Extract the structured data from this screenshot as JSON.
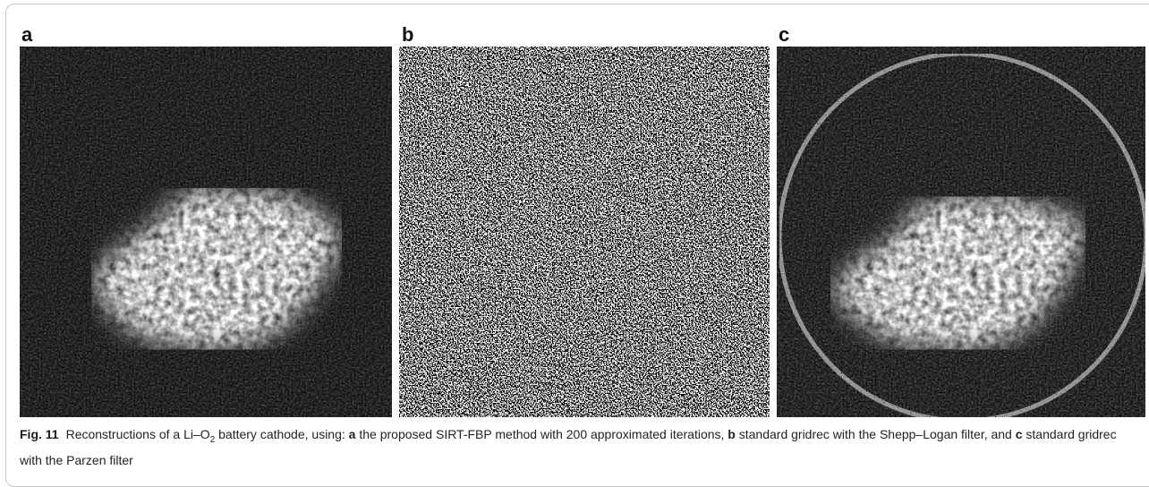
{
  "panels": [
    {
      "label": "a"
    },
    {
      "label": "b"
    },
    {
      "label": "c"
    }
  ],
  "caption": {
    "label": "Fig. 11",
    "parts": [
      "Reconstructions of a Li–O",
      "2",
      " battery cathode, using: ",
      "a",
      " the proposed SIRT-FBP method with 200 approximated iterations, ",
      "b",
      " standard gridrec with the Shepp–Logan filter, and ",
      "c",
      " standard gridrec with the Parzen filter"
    ]
  }
}
